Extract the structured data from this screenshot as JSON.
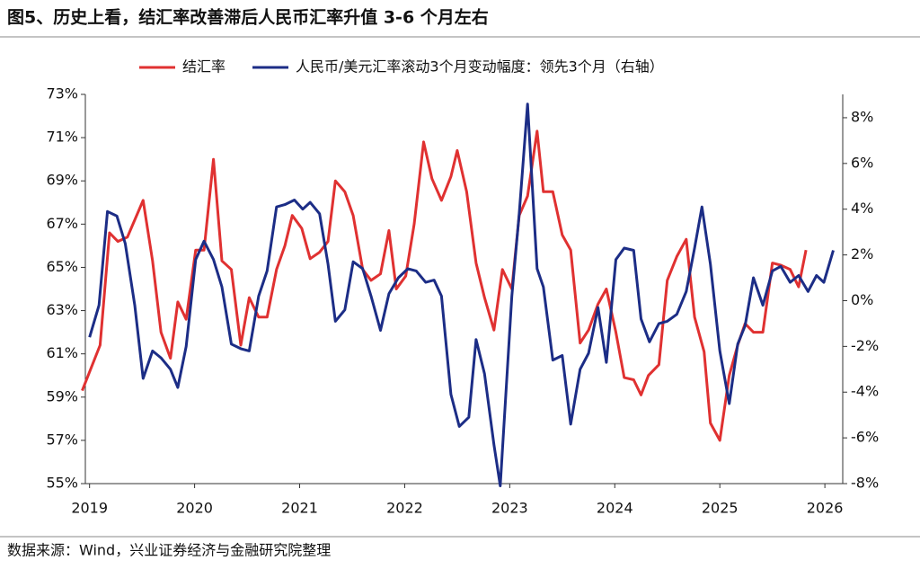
{
  "chart_data": {
    "type": "line",
    "title": "图5、历史上看，结汇率改善滞后人民币汇率升值 3-6 个月左右",
    "source": "数据来源：Wind，兴业证券经济与金融研究院整理",
    "xlim": [
      2018.96,
      2026.17
    ],
    "xticks": [
      2019,
      2020,
      2021,
      2022,
      2023,
      2024,
      2025,
      2026
    ],
    "ylim": [
      55,
      73
    ],
    "yticks": [
      {
        "value": 55,
        "label": "55%"
      },
      {
        "value": 57,
        "label": "57%"
      },
      {
        "value": 59,
        "label": "59%"
      },
      {
        "value": 61,
        "label": "61%"
      },
      {
        "value": 63,
        "label": "63%"
      },
      {
        "value": 65,
        "label": "65%"
      },
      {
        "value": 67,
        "label": "67%"
      },
      {
        "value": 69,
        "label": "69%"
      },
      {
        "value": 71,
        "label": "71%"
      },
      {
        "value": 73,
        "label": "73%"
      }
    ],
    "y2lim": [
      -8,
      9.02
    ],
    "y2ticks": [
      {
        "value": -8,
        "label": "-8%"
      },
      {
        "value": -6,
        "label": "-6%"
      },
      {
        "value": -4,
        "label": "-4%"
      },
      {
        "value": -2,
        "label": "-2%"
      },
      {
        "value": 0,
        "label": "0%"
      },
      {
        "value": 2,
        "label": "2%"
      },
      {
        "value": 4,
        "label": "4%"
      },
      {
        "value": 6,
        "label": "6%"
      },
      {
        "value": 8,
        "label": "8%"
      }
    ],
    "series": [
      {
        "name": "结汇率",
        "color": "#e03131",
        "x": [
          2018.93,
          2019.1,
          2019.19,
          2019.27,
          2019.36,
          2019.51,
          2019.6,
          2019.68,
          2019.77,
          2019.84,
          2019.92,
          2020.01,
          2020.09,
          2020.18,
          2020.26,
          2020.35,
          2020.44,
          2020.52,
          2020.61,
          2020.69,
          2020.78,
          2020.86,
          2020.93,
          2021.02,
          2021.1,
          2021.19,
          2021.27,
          2021.34,
          2021.43,
          2021.51,
          2021.6,
          2021.68,
          2021.77,
          2021.85,
          2021.92,
          2022.01,
          2022.09,
          2022.18,
          2022.26,
          2022.35,
          2022.44,
          2022.5,
          2022.59,
          2022.68,
          2022.76,
          2022.85,
          2022.93,
          2023.02,
          2023.09,
          2023.17,
          2023.26,
          2023.32,
          2023.41,
          2023.5,
          2023.58,
          2023.67,
          2023.75,
          2023.84,
          2023.92,
          2024.01,
          2024.09,
          2024.18,
          2024.25,
          2024.32,
          2024.42,
          2024.5,
          2024.59,
          2024.68,
          2024.76,
          2024.85,
          2024.91,
          2025.0,
          2025.09,
          2025.17,
          2025.24,
          2025.32,
          2025.41,
          2025.5,
          2025.58,
          2025.67,
          2025.75,
          2025.82
        ],
        "values": [
          59.3,
          61.4,
          66.6,
          66.2,
          66.4,
          68.1,
          65.3,
          62.0,
          60.8,
          63.4,
          62.6,
          65.8,
          65.8,
          70.0,
          65.3,
          64.9,
          61.4,
          63.6,
          62.7,
          62.7,
          64.9,
          66.0,
          67.4,
          66.8,
          65.4,
          65.7,
          66.2,
          69.0,
          68.5,
          67.4,
          64.9,
          64.4,
          64.7,
          66.7,
          64.0,
          64.6,
          67.0,
          70.8,
          69.1,
          68.1,
          69.2,
          70.4,
          68.5,
          65.2,
          63.6,
          62.1,
          64.9,
          64.0,
          67.4,
          68.3,
          71.3,
          68.5,
          68.5,
          66.5,
          65.8,
          61.5,
          62.1,
          63.3,
          64.0,
          62.0,
          59.9,
          59.8,
          59.1,
          60.0,
          60.5,
          64.4,
          65.5,
          66.3,
          62.7,
          61.1,
          57.8,
          57.0,
          60.0,
          61.4,
          62.4,
          62.0,
          62.0,
          65.2,
          65.1,
          64.9,
          64.1,
          65.8
        ]
      },
      {
        "name": "人民币/美元汇率滚动3个月变动幅度：领先3个月（右轴）",
        "color": "#1c2d86",
        "axis": "y2",
        "x": [
          2019.0,
          2019.09,
          2019.17,
          2019.26,
          2019.34,
          2019.43,
          2019.51,
          2019.6,
          2019.68,
          2019.77,
          2019.84,
          2019.92,
          2020.01,
          2020.09,
          2020.18,
          2020.26,
          2020.35,
          2020.44,
          2020.52,
          2020.61,
          2020.69,
          2020.78,
          2020.86,
          2020.95,
          2021.03,
          2021.1,
          2021.19,
          2021.27,
          2021.34,
          2021.43,
          2021.51,
          2021.6,
          2021.68,
          2021.77,
          2021.85,
          2021.94,
          2022.03,
          2022.11,
          2022.2,
          2022.28,
          2022.35,
          2022.44,
          2022.52,
          2022.61,
          2022.68,
          2022.76,
          2022.85,
          2022.91,
          2023.02,
          2023.09,
          2023.17,
          2023.26,
          2023.32,
          2023.41,
          2023.5,
          2023.58,
          2023.67,
          2023.75,
          2023.84,
          2023.92,
          2024.01,
          2024.09,
          2024.18,
          2024.25,
          2024.33,
          2024.42,
          2024.5,
          2024.59,
          2024.68,
          2024.76,
          2024.83,
          2024.91,
          2025.0,
          2025.09,
          2025.17,
          2025.24,
          2025.32,
          2025.41,
          2025.5,
          2025.58,
          2025.67,
          2025.75,
          2025.84,
          2025.92,
          2025.99,
          2026.08
        ],
        "values": [
          -1.6,
          -0.2,
          3.9,
          3.7,
          2.5,
          -0.2,
          -3.4,
          -2.2,
          -2.5,
          -3.0,
          -3.8,
          -2.0,
          1.8,
          2.6,
          1.8,
          0.6,
          -1.9,
          -2.1,
          -2.2,
          0.2,
          1.3,
          4.1,
          4.2,
          4.4,
          4.0,
          4.3,
          3.8,
          1.6,
          -0.9,
          -0.4,
          1.7,
          1.4,
          0.2,
          -1.3,
          0.3,
          1.0,
          1.4,
          1.3,
          0.8,
          0.9,
          0.2,
          -4.1,
          -5.5,
          -5.1,
          -1.7,
          -3.2,
          -6.3,
          -8.1,
          0.2,
          3.8,
          8.6,
          1.4,
          0.6,
          -2.6,
          -2.4,
          -5.4,
          -3.0,
          -2.3,
          -0.3,
          -2.7,
          1.8,
          2.3,
          2.2,
          -0.8,
          -1.8,
          -1.0,
          -0.9,
          -0.6,
          0.4,
          2.3,
          4.1,
          1.6,
          -2.2,
          -4.5,
          -1.9,
          -1.1,
          1.0,
          -0.2,
          1.3,
          1.5,
          0.8,
          1.1,
          0.4,
          1.1,
          0.8,
          2.2
        ]
      }
    ]
  }
}
